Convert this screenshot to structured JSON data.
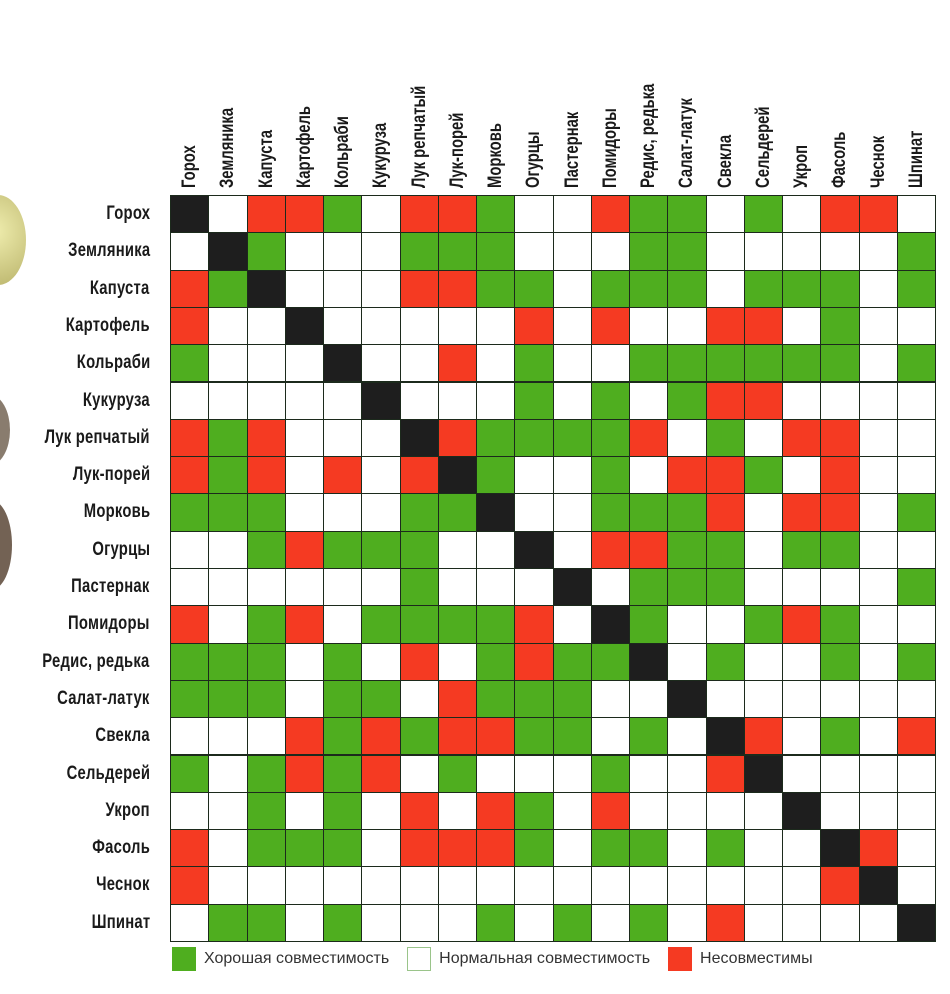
{
  "colors": {
    "good": "#4fae1f",
    "normal": "#ffffff",
    "bad": "#f53a22",
    "self": "#1e1e1e"
  },
  "chart_data": {
    "type": "heatmap",
    "title": "",
    "categories": [
      "Горох",
      "Земляника",
      "Капуста",
      "Картофель",
      "Кольраби",
      "Кукуруза",
      "Лук репчатый",
      "Лук-порей",
      "Морковь",
      "Огурцы",
      "Пастернак",
      "Помидоры",
      "Редис, редька",
      "Салат-латук",
      "Свекла",
      "Сельдерей",
      "Укроп",
      "Фасоль",
      "Чеснок",
      "Шпинат"
    ],
    "value_codes": {
      "G": "good",
      "W": "normal",
      "R": "bad",
      "K": "self"
    },
    "matrix": [
      "KWRRGWRRGWWRGGWGWRRW",
      "WKGWWWGGGWWWGGWWWWWG",
      "RGKWWWRRGGWGGGWGGGWG",
      "RWWKWWWWWRWRWWRRWGWW",
      "GWWWKWWRWGWWGGGGGGWG",
      "WWWWWKWWWGWGWGRRWWWW",
      "RGRWWWKRGGGGRWGWRRWW",
      "RGRWRWRKGWWGWRRGWRWW",
      "GGGWWWGGKWWGGGRWRRWG",
      "WWGRGGGWWKWRRGGWGGWW",
      "WWWWWWGWWWKWGGGWWWWG",
      "RWGRWGGGGRWKGWWGRGWW",
      "GGGWGWRWGRGGKWGWWGWG",
      "GGGWGGWRGGGWWKWWWWWW",
      "WWWRGRGRRGGWGWKRWGWR",
      "GWGRGRWGWWWGWWRKWWWW",
      "WWGWGWRWRGWRWWWWKWWW",
      "RWGGGWRRRGWGGWGWWKRW",
      "RWWWWWWWWWWWWWWWWRKW",
      "WGGWGWWWGWGWGWRWWWWK"
    ],
    "legend": [
      {
        "code": "G",
        "label": "Хорошая совместимость"
      },
      {
        "code": "W",
        "label": "Нормальная совместимость"
      },
      {
        "code": "R",
        "label": "Несовместимы"
      }
    ],
    "legend_position": "bottom"
  }
}
